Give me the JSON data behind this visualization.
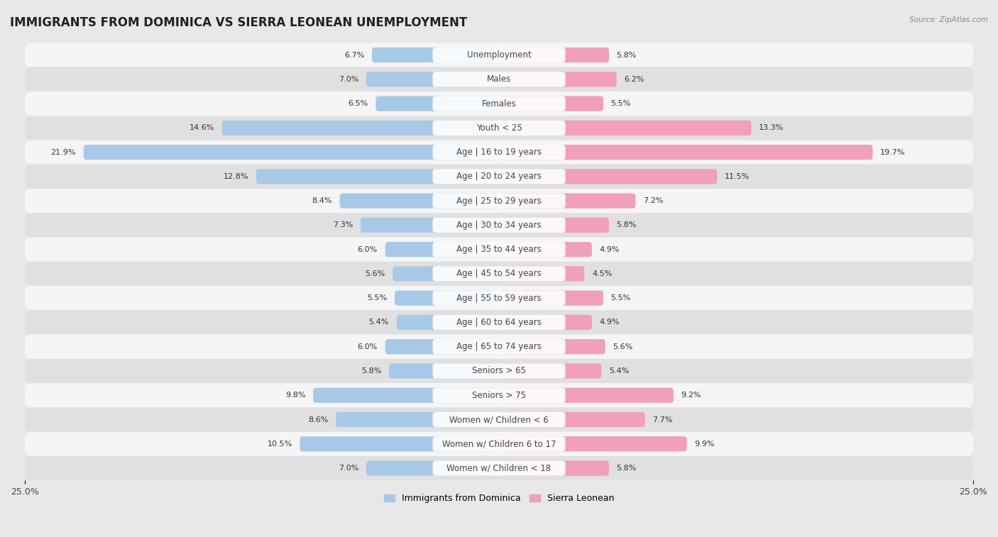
{
  "title": "IMMIGRANTS FROM DOMINICA VS SIERRA LEONEAN UNEMPLOYMENT",
  "source": "Source: ZipAtlas.com",
  "categories": [
    "Unemployment",
    "Males",
    "Females",
    "Youth < 25",
    "Age | 16 to 19 years",
    "Age | 20 to 24 years",
    "Age | 25 to 29 years",
    "Age | 30 to 34 years",
    "Age | 35 to 44 years",
    "Age | 45 to 54 years",
    "Age | 55 to 59 years",
    "Age | 60 to 64 years",
    "Age | 65 to 74 years",
    "Seniors > 65",
    "Seniors > 75",
    "Women w/ Children < 6",
    "Women w/ Children 6 to 17",
    "Women w/ Children < 18"
  ],
  "left_values": [
    6.7,
    7.0,
    6.5,
    14.6,
    21.9,
    12.8,
    8.4,
    7.3,
    6.0,
    5.6,
    5.5,
    5.4,
    6.0,
    5.8,
    9.8,
    8.6,
    10.5,
    7.0
  ],
  "right_values": [
    5.8,
    6.2,
    5.5,
    13.3,
    19.7,
    11.5,
    7.2,
    5.8,
    4.9,
    4.5,
    5.5,
    4.9,
    5.6,
    5.4,
    9.2,
    7.7,
    9.9,
    5.8
  ],
  "left_color": "#a8c8e8",
  "right_color": "#f0a0b8",
  "left_label": "Immigrants from Dominica",
  "right_label": "Sierra Leonean",
  "axis_max": 25.0,
  "bg_color": "#e8e8e8",
  "row_bg_odd": "#f5f5f5",
  "row_bg_even": "#e0e0e0",
  "title_fontsize": 12,
  "label_fontsize": 8.5,
  "value_fontsize": 8.0,
  "tick_fontsize": 9.0
}
